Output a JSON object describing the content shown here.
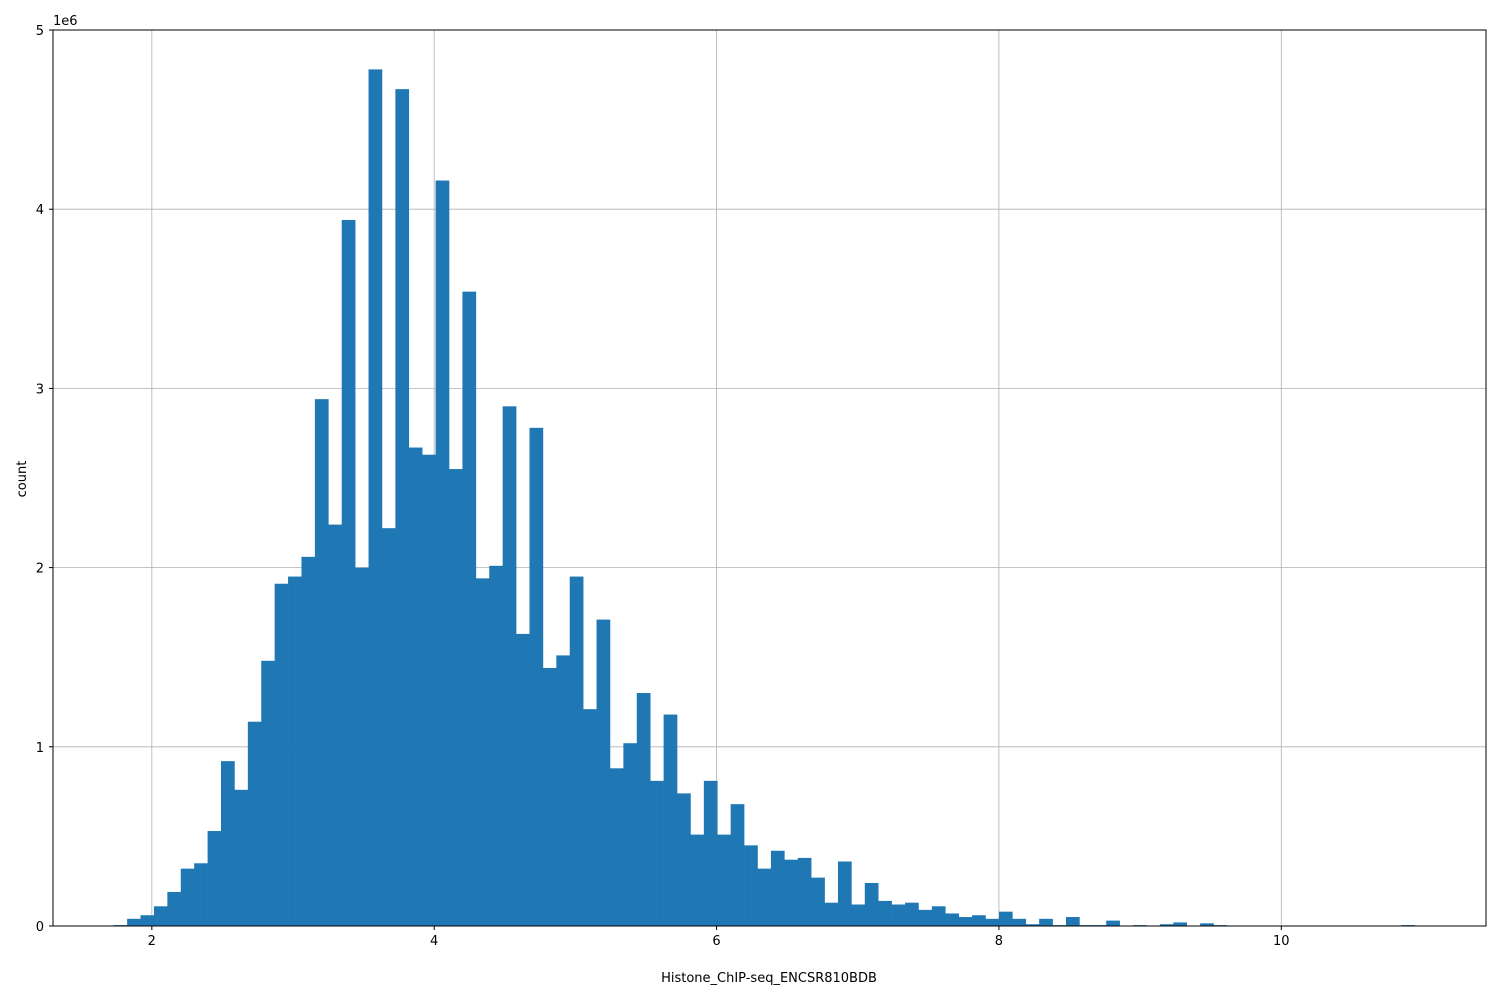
{
  "chart_data": {
    "type": "bar",
    "title": "",
    "xlabel": "Histone_ChIP-seq_ENCSR810BDB",
    "ylabel": "count",
    "y_offset_label": "1e6",
    "xlim": [
      1.3,
      11.45
    ],
    "ylim": [
      0,
      5000000
    ],
    "x_ticks": [
      2,
      4,
      6,
      8,
      10
    ],
    "x_tick_labels": [
      "2",
      "4",
      "6",
      "8",
      "10"
    ],
    "y_ticks": [
      0,
      1000000,
      2000000,
      3000000,
      4000000,
      5000000
    ],
    "y_tick_labels": [
      "0",
      "1",
      "2",
      "3",
      "4",
      "5"
    ],
    "grid": true,
    "bin_width": 0.095,
    "bar_color": "#1f77b4",
    "bin_starts": [
      1.73,
      1.825,
      1.92,
      2.015,
      2.11,
      2.205,
      2.3,
      2.395,
      2.49,
      2.585,
      2.68,
      2.775,
      2.87,
      2.965,
      3.06,
      3.155,
      3.25,
      3.345,
      3.44,
      3.535,
      3.63,
      3.725,
      3.82,
      3.915,
      4.01,
      4.105,
      4.2,
      4.295,
      4.39,
      4.485,
      4.58,
      4.675,
      4.77,
      4.865,
      4.96,
      5.055,
      5.15,
      5.245,
      5.34,
      5.435,
      5.53,
      5.625,
      5.72,
      5.815,
      5.91,
      6.005,
      6.1,
      6.195,
      6.29,
      6.385,
      6.48,
      6.575,
      6.67,
      6.765,
      6.86,
      6.955,
      7.05,
      7.145,
      7.24,
      7.335,
      7.43,
      7.525,
      7.62,
      7.715,
      7.81,
      7.905,
      8.0,
      8.095,
      8.19,
      8.285,
      8.38,
      8.475,
      8.57,
      8.665,
      8.76,
      8.855,
      8.95,
      9.045,
      9.14,
      9.235,
      9.33,
      9.425,
      9.52,
      9.615,
      9.71,
      9.805,
      9.9,
      9.995,
      10.09,
      10.185,
      10.28,
      10.375,
      10.47,
      10.565,
      10.66,
      10.755,
      10.85,
      10.945,
      11.04
    ],
    "values": [
      5000,
      40000,
      60000,
      110000,
      190000,
      320000,
      350000,
      530000,
      920000,
      760000,
      1140000,
      1480000,
      1910000,
      1950000,
      2060000,
      2940000,
      2240000,
      3940000,
      2000000,
      4780000,
      2220000,
      4670000,
      2670000,
      2630000,
      4160000,
      2550000,
      3540000,
      1940000,
      2010000,
      2900000,
      1630000,
      2780000,
      1440000,
      1510000,
      1950000,
      1210000,
      1710000,
      880000,
      1020000,
      1300000,
      810000,
      1180000,
      740000,
      510000,
      810000,
      510000,
      680000,
      450000,
      320000,
      420000,
      370000,
      380000,
      270000,
      130000,
      360000,
      120000,
      240000,
      140000,
      120000,
      130000,
      90000,
      110000,
      70000,
      50000,
      60000,
      40000,
      80000,
      40000,
      10000,
      40000,
      5000,
      50000,
      5000,
      5000,
      30000,
      0,
      5000,
      0,
      10000,
      20000,
      0,
      15000,
      5000,
      0,
      0,
      0,
      0,
      0,
      0,
      0,
      0,
      0,
      0,
      0,
      0,
      0,
      5000,
      0,
      0
    ]
  }
}
